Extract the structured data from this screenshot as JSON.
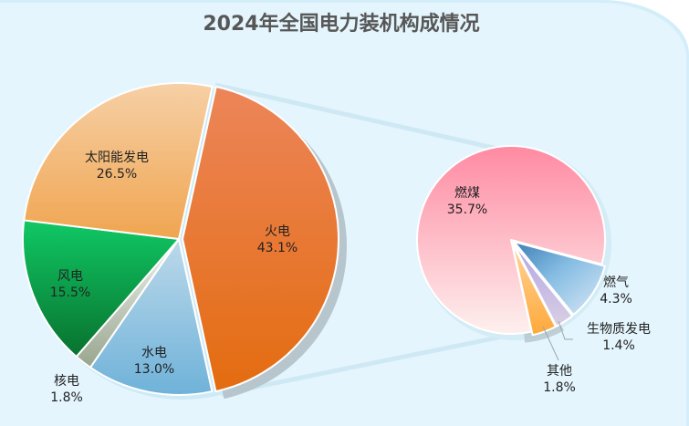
{
  "title": "2024年全国电力装机构成情况",
  "colors": {
    "background": "#e4f5fd",
    "title": "#575757",
    "connector": "#cfe9f4",
    "shadow": "#b7c6cd"
  },
  "chart_data": [
    {
      "type": "pie",
      "title": "2024年全国电力装机构成情况",
      "name": "main-pie",
      "categories": [
        "火电",
        "水电",
        "核电",
        "风电",
        "太阳能发电"
      ],
      "values": [
        43.1,
        13.0,
        1.8,
        15.5,
        26.5
      ],
      "labels": [
        "43.1%",
        "13.0%",
        "1.8%",
        "15.5%",
        "26.5%"
      ],
      "exploded": "火电",
      "colors": [
        "#e87a2a",
        "#89bde0",
        "#a9b59f",
        "#10b85a",
        "#f2b26a"
      ]
    },
    {
      "type": "pie",
      "name": "breakdown-pie",
      "parent": "火电",
      "categories": [
        "燃煤",
        "燃气",
        "生物质发电",
        "其他"
      ],
      "values": [
        35.7,
        4.3,
        1.4,
        1.8
      ],
      "labels": [
        "35.7%",
        "4.3%",
        "1.4%",
        "1.8%"
      ],
      "colors": [
        "#fdb2bc",
        "#8cbfe3",
        "#c9bde6",
        "#ffb55c"
      ]
    }
  ],
  "labels": {
    "fire": {
      "name": "火电",
      "value": "43.1%"
    },
    "solar": {
      "name": "太阳能发电",
      "value": "26.5%"
    },
    "wind": {
      "name": "风电",
      "value": "15.5%"
    },
    "hydro": {
      "name": "水电",
      "value": "13.0%"
    },
    "nuclear": {
      "name": "核电",
      "value": "1.8%"
    },
    "coal": {
      "name": "燃煤",
      "value": "35.7%"
    },
    "gas": {
      "name": "燃气",
      "value": "4.3%"
    },
    "biomass": {
      "name": "生物质发电",
      "value": "1.4%"
    },
    "other": {
      "name": "其他",
      "value": "1.8%"
    }
  }
}
